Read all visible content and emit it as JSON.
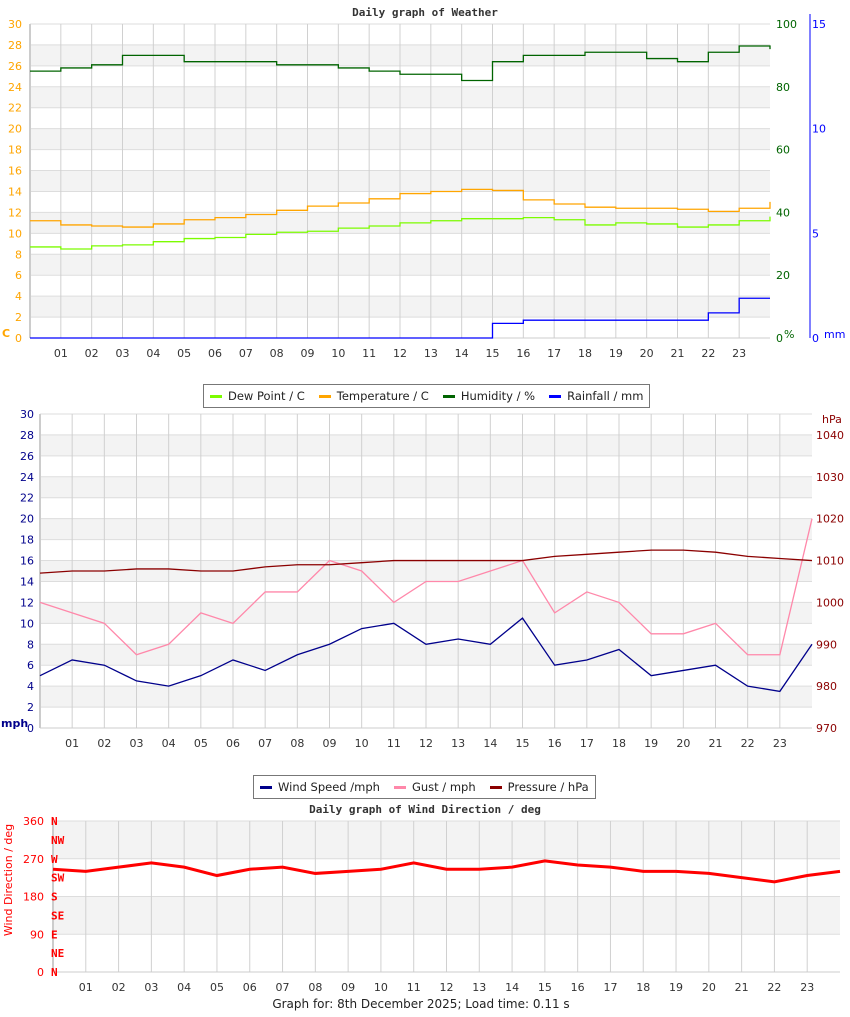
{
  "chart_data": [
    {
      "type": "line",
      "title": "Daily graph of Weather",
      "x_tick_labels": [
        "01",
        "02",
        "03",
        "04",
        "05",
        "06",
        "07",
        "08",
        "09",
        "10",
        "11",
        "12",
        "13",
        "14",
        "15",
        "16",
        "17",
        "18",
        "19",
        "20",
        "21",
        "22",
        "23"
      ],
      "xlim": [
        0,
        24
      ],
      "y_left": {
        "label": "C",
        "ticks": [
          0,
          2,
          4,
          6,
          8,
          10,
          12,
          14,
          16,
          18,
          20,
          22,
          24,
          26,
          28,
          30
        ],
        "range": [
          0,
          30
        ],
        "color": "#ffa500"
      },
      "y_right1": {
        "label": "%",
        "ticks": [
          0,
          20,
          40,
          60,
          80,
          100
        ],
        "range": [
          0,
          100
        ],
        "color": "#006400"
      },
      "y_right2": {
        "label": "mm",
        "ticks": [
          0,
          5,
          10,
          15
        ],
        "range": [
          0,
          15
        ],
        "color": "#0000ff"
      },
      "series": [
        {
          "name": "Dew Point / C",
          "color": "#7cfc00",
          "axis": "left",
          "values": [
            8.7,
            8.5,
            8.8,
            8.9,
            9.2,
            9.5,
            9.6,
            9.9,
            10.1,
            10.2,
            10.5,
            10.7,
            11.0,
            11.2,
            11.4,
            11.4,
            11.5,
            11.3,
            10.8,
            11.0,
            10.9,
            10.6,
            10.8,
            11.2,
            11.6
          ]
        },
        {
          "name": "Temperature / C",
          "color": "#ffa500",
          "axis": "left",
          "values": [
            11.2,
            10.8,
            10.7,
            10.6,
            10.9,
            11.3,
            11.5,
            11.8,
            12.2,
            12.6,
            12.9,
            13.3,
            13.8,
            14.0,
            14.2,
            14.1,
            13.2,
            12.8,
            12.5,
            12.4,
            12.4,
            12.3,
            12.1,
            12.4,
            13.0
          ]
        },
        {
          "name": "Humidity / %",
          "color": "#006400",
          "axis": "right1",
          "values": [
            85,
            86,
            87,
            90,
            90,
            88,
            88,
            88,
            87,
            87,
            86,
            85,
            84,
            84,
            82,
            88,
            90,
            90,
            91,
            91,
            89,
            88,
            91,
            93,
            92
          ]
        },
        {
          "name": "Rainfall / mm",
          "color": "#0000ff",
          "axis": "right2",
          "values": [
            0,
            0,
            0,
            0,
            0,
            0,
            0,
            0,
            0,
            0,
            0,
            0,
            0,
            0,
            0,
            0.7,
            0.85,
            0.85,
            0.85,
            0.85,
            0.85,
            0.85,
            1.2,
            1.9,
            1.9
          ]
        }
      ],
      "grid": true,
      "legend": "bottom"
    },
    {
      "type": "line",
      "title": "",
      "x_tick_labels": [
        "01",
        "02",
        "03",
        "04",
        "05",
        "06",
        "07",
        "08",
        "09",
        "10",
        "11",
        "12",
        "13",
        "14",
        "15",
        "16",
        "17",
        "18",
        "19",
        "20",
        "21",
        "22",
        "23"
      ],
      "xlim": [
        0,
        24
      ],
      "y_left": {
        "label": "mph",
        "ticks": [
          0,
          2,
          4,
          6,
          8,
          10,
          12,
          14,
          16,
          18,
          20,
          22,
          24,
          26,
          28,
          30
        ],
        "range": [
          0,
          30
        ],
        "color": "#00008b"
      },
      "y_right1": {
        "label": "hPa",
        "ticks": [
          970,
          980,
          990,
          1000,
          1010,
          1020,
          1030,
          1040
        ],
        "range": [
          970,
          1045
        ],
        "color": "#8b0000"
      },
      "series": [
        {
          "name": "Wind Speed /mph",
          "color": "#00008b",
          "axis": "left",
          "values": [
            5,
            6.5,
            6,
            4.5,
            4,
            5,
            6.5,
            5.5,
            7,
            8,
            9.5,
            10,
            8,
            8.5,
            8,
            10.5,
            6,
            6.5,
            7.5,
            5,
            5.5,
            6,
            4,
            3.5,
            8
          ]
        },
        {
          "name": "Gust / mph",
          "color": "#ff88aa",
          "axis": "left",
          "values": [
            12,
            11,
            10,
            7,
            8,
            11,
            10,
            13,
            13,
            16,
            15,
            12,
            14,
            14,
            15,
            16,
            11,
            13,
            12,
            9,
            9,
            10,
            7,
            7,
            20
          ]
        },
        {
          "name": "Pressure / hPa",
          "color": "#8b0000",
          "axis": "right1",
          "values": [
            1007,
            1007.5,
            1007.5,
            1008,
            1008,
            1007.5,
            1007.5,
            1008.5,
            1009,
            1009,
            1009.5,
            1010,
            1010,
            1010,
            1010,
            1010,
            1011,
            1011.5,
            1012,
            1012.5,
            1012.5,
            1012,
            1011,
            1010.5,
            1010
          ]
        }
      ],
      "grid": true,
      "legend": "bottom"
    },
    {
      "type": "scatter",
      "title": "Daily graph of Wind Direction / deg",
      "x_tick_labels": [
        "01",
        "02",
        "03",
        "04",
        "05",
        "06",
        "07",
        "08",
        "09",
        "10",
        "11",
        "12",
        "13",
        "14",
        "15",
        "16",
        "17",
        "18",
        "19",
        "20",
        "21",
        "22",
        "23"
      ],
      "xlim": [
        0,
        24
      ],
      "y_left": {
        "label": "Wind Direction / deg",
        "ticks": [
          0,
          90,
          180,
          270,
          360
        ],
        "range": [
          0,
          360
        ],
        "color": "#ff0000"
      },
      "compass": [
        "N",
        "NE",
        "E",
        "SE",
        "S",
        "SW",
        "W",
        "NW",
        "N"
      ],
      "series": [
        {
          "name": "",
          "color": "#ff0000",
          "axis": "left",
          "values": [
            245,
            240,
            250,
            260,
            250,
            230,
            245,
            250,
            235,
            240,
            245,
            260,
            245,
            245,
            250,
            265,
            255,
            250,
            240,
            240,
            235,
            225,
            215,
            230,
            240
          ]
        }
      ],
      "grid": true
    }
  ],
  "footer": "Graph for: 8th December 2025; Load time: 0.11 s"
}
